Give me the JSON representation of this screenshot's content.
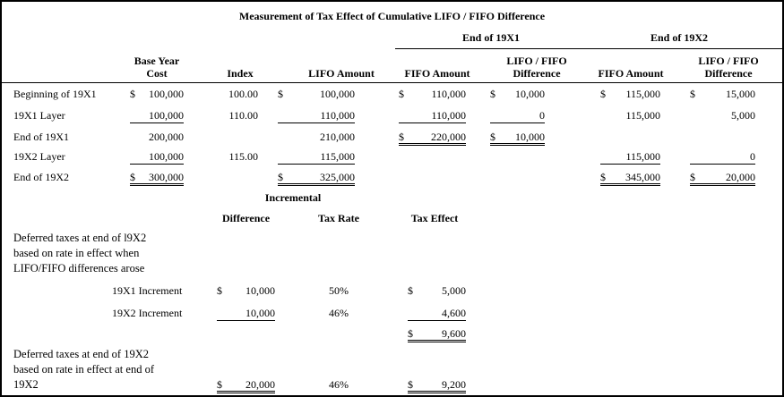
{
  "title": "Measurement of Tax Effect of Cumulative LIFO / FIFO Difference",
  "colors": {
    "text": "#000000",
    "border": "#000000",
    "background": "#ffffff"
  },
  "top_table": {
    "group_headers": {
      "end_19x1": "End of 19X1",
      "end_19x2": "End of 19X2"
    },
    "col_headers": {
      "base_year_cost": [
        "Base Year",
        "Cost"
      ],
      "index": "Index",
      "lifo_amount": "LIFO Amount",
      "fifo_amount_19x1": "FIFO Amount",
      "lifo_fifo_diff_19x1": [
        "LIFO / FIFO",
        "Difference"
      ],
      "fifo_amount_19x2": "FIFO Amount",
      "lifo_fifo_diff_19x2": [
        "LIFO / FIFO",
        "Difference"
      ]
    },
    "rows": [
      {
        "label": "Beginning of 19X1",
        "byc_cur": "$",
        "byc": "100,000",
        "index": "100.00",
        "lifo_cur": "$",
        "lifo": "100,000",
        "fifo1_cur": "$",
        "fifo1": "110,000",
        "diff1_cur": "$",
        "diff1": "10,000",
        "fifo2_cur": "$",
        "fifo2": "115,000",
        "diff2_cur": "$",
        "diff2": "15,000"
      },
      {
        "label": "19X1 Layer",
        "byc": "100,000",
        "index": "110.00",
        "lifo": "110,000",
        "fifo1": "110,000",
        "diff1": "0",
        "fifo2": "115,000",
        "diff2": "5,000"
      },
      {
        "label": "End of 19X1",
        "byc": "200,000",
        "lifo": "210,000",
        "fifo1_cur": "$",
        "fifo1": "220,000",
        "diff1_cur": "$",
        "diff1": "10,000"
      },
      {
        "label": "19X2 Layer",
        "byc": "100,000",
        "index": "115.00",
        "lifo": "115,000",
        "fifo2": "115,000",
        "diff2": "0"
      },
      {
        "label": "End of 19X2",
        "byc_cur": "$",
        "byc": "300,000",
        "lifo_cur": "$",
        "lifo": "325,000",
        "fifo2_cur": "$",
        "fifo2": "345,000",
        "diff2_cur": "$",
        "diff2": "20,000"
      }
    ]
  },
  "incremental": {
    "section_header": "Incremental",
    "col_headers": {
      "difference": "Difference",
      "tax_rate": "Tax Rate",
      "tax_effect": "Tax Effect"
    },
    "note1": [
      "Deferred taxes at end of l9X2",
      "based on rate in effect when",
      "LIFO/FIFO differences arose"
    ],
    "rows": [
      {
        "label": "19X1 Increment",
        "diff_cur": "$",
        "diff": "10,000",
        "rate": "50%",
        "effect_cur": "$",
        "effect": "5,000"
      },
      {
        "label": "19X2 Increment",
        "diff": "10,000",
        "rate": "46%",
        "effect": "4,600"
      }
    ],
    "subtotal": {
      "effect_cur": "$",
      "effect": "9,600"
    },
    "note2": [
      "Deferred taxes at end of 19X2",
      "based on rate in effect at end of",
      "19X2"
    ],
    "final_row": {
      "diff_cur": "$",
      "diff": "20,000",
      "rate": "46%",
      "effect_cur": "$",
      "effect": "9,200"
    }
  }
}
